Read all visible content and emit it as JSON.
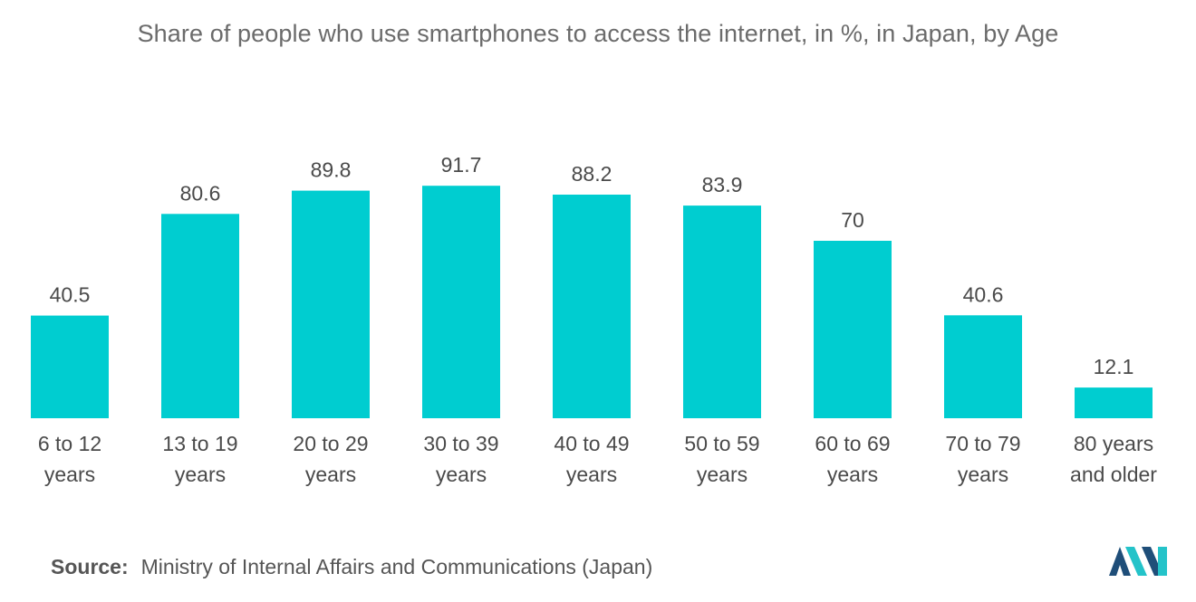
{
  "title": "Share of people who use smartphones to access the internet, in %, in Japan, by Age",
  "source": {
    "prefix": "Source:",
    "text": "Ministry of Internal Affairs and Communications (Japan)"
  },
  "colors": {
    "bar": "#00cdd0",
    "logo_dark": "#1f4e79",
    "logo_light": "#24c3c9"
  },
  "chart_data": {
    "type": "bar",
    "categories": [
      [
        "6 to 12",
        "years"
      ],
      [
        "13 to 19",
        "years"
      ],
      [
        "20 to 29",
        "years"
      ],
      [
        "30 to 39",
        "years"
      ],
      [
        "40 to 49",
        "years"
      ],
      [
        "50 to 59",
        "years"
      ],
      [
        "60 to 69",
        "years"
      ],
      [
        "70 to 79",
        "years"
      ],
      [
        "80 years",
        "and older"
      ]
    ],
    "values": [
      40.5,
      80.6,
      89.8,
      91.7,
      88.2,
      83.9,
      70,
      40.6,
      12.1
    ],
    "value_labels": [
      "40.5",
      "80.6",
      "89.8",
      "91.7",
      "88.2",
      "83.9",
      "70",
      "40.6",
      "12.1"
    ],
    "ylim": [
      0,
      100
    ],
    "grid": false,
    "legend": "none"
  }
}
